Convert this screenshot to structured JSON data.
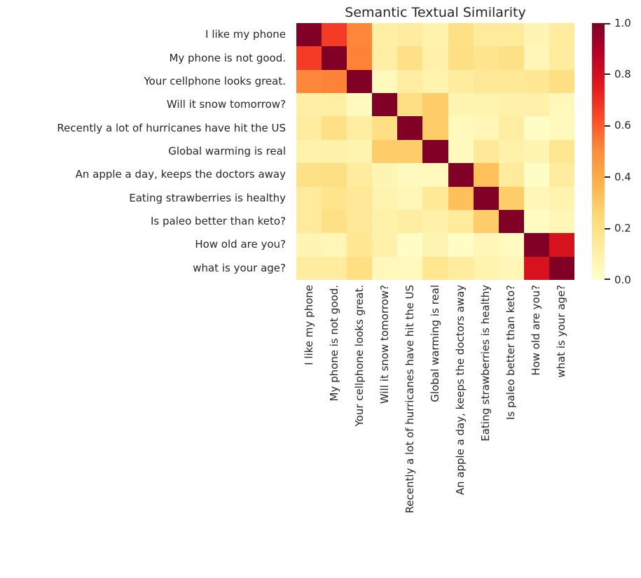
{
  "chart_data": {
    "type": "heatmap",
    "title": "Semantic Textual Similarity",
    "labels": [
      "I like my phone",
      "My phone is not good.",
      "Your cellphone looks great.",
      "Will it snow tomorrow?",
      "Recently a lot of hurricanes have hit the US",
      "Global warming is real",
      "An apple a day, keeps the doctors away",
      "Eating strawberries is healthy",
      "Is paleo better than keto?",
      "How old are you?",
      "what is your age?"
    ],
    "matrix": [
      [
        1.0,
        0.67,
        0.51,
        0.11,
        0.13,
        0.09,
        0.2,
        0.14,
        0.14,
        0.07,
        0.13
      ],
      [
        0.67,
        1.0,
        0.52,
        0.11,
        0.2,
        0.1,
        0.21,
        0.18,
        0.2,
        0.06,
        0.13
      ],
      [
        0.51,
        0.52,
        1.0,
        0.04,
        0.12,
        0.08,
        0.13,
        0.15,
        0.15,
        0.16,
        0.21
      ],
      [
        0.11,
        0.11,
        0.04,
        1.0,
        0.21,
        0.29,
        0.07,
        0.08,
        0.1,
        0.1,
        0.05
      ],
      [
        0.13,
        0.2,
        0.12,
        0.21,
        1.0,
        0.29,
        0.04,
        0.06,
        0.12,
        0.02,
        0.04
      ],
      [
        0.09,
        0.1,
        0.08,
        0.29,
        0.29,
        1.0,
        0.04,
        0.15,
        0.1,
        0.07,
        0.17
      ],
      [
        0.2,
        0.21,
        0.13,
        0.07,
        0.04,
        0.04,
        1.0,
        0.33,
        0.14,
        0.02,
        0.13
      ],
      [
        0.14,
        0.18,
        0.15,
        0.08,
        0.06,
        0.15,
        0.33,
        1.0,
        0.29,
        0.06,
        0.08
      ],
      [
        0.14,
        0.2,
        0.15,
        0.1,
        0.12,
        0.1,
        0.14,
        0.29,
        1.0,
        0.03,
        0.06
      ],
      [
        0.07,
        0.06,
        0.16,
        0.1,
        0.02,
        0.07,
        0.02,
        0.06,
        0.03,
        1.0,
        0.79
      ],
      [
        0.13,
        0.13,
        0.21,
        0.05,
        0.04,
        0.17,
        0.13,
        0.08,
        0.06,
        0.79,
        1.0
      ]
    ],
    "value_range": [
      0.0,
      1.0
    ],
    "colormap": {
      "name": "YlOrRd",
      "stops": [
        {
          "pos": 0.0,
          "color": "#ffffcc"
        },
        {
          "pos": 0.125,
          "color": "#ffeda0"
        },
        {
          "pos": 0.25,
          "color": "#fed976"
        },
        {
          "pos": 0.375,
          "color": "#feb24c"
        },
        {
          "pos": 0.5,
          "color": "#fd8d3c"
        },
        {
          "pos": 0.625,
          "color": "#fc4e2a"
        },
        {
          "pos": 0.75,
          "color": "#e31a1c"
        },
        {
          "pos": 0.875,
          "color": "#bd0026"
        },
        {
          "pos": 1.0,
          "color": "#800026"
        }
      ]
    },
    "colorbar": {
      "position": "right",
      "ticks": [
        {
          "label": "1.0",
          "value": 1.0
        },
        {
          "label": "0.8",
          "value": 0.8
        },
        {
          "label": "0.6",
          "value": 0.6
        },
        {
          "label": "0.4",
          "value": 0.4
        },
        {
          "label": "0.2",
          "value": 0.2
        },
        {
          "label": "0.0",
          "value": 0.0
        }
      ]
    },
    "text_color": "#262626",
    "grid": false,
    "xlabel": "",
    "ylabel": ""
  }
}
